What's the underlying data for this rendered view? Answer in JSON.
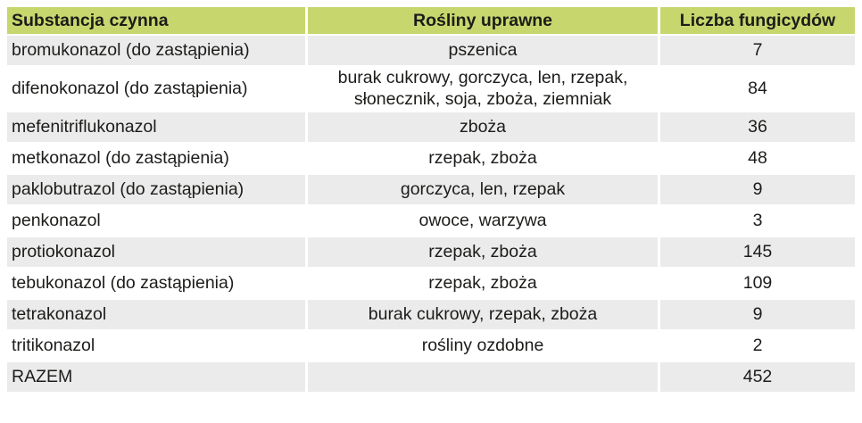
{
  "table": {
    "columns": [
      {
        "label": "Substancja czynna"
      },
      {
        "label": "Rośliny uprawne"
      },
      {
        "label": "Liczba fungicydów"
      }
    ],
    "rows": [
      {
        "substance": "bromukonazol (do zastąpienia)",
        "crops": "pszenica",
        "count": "7"
      },
      {
        "substance": "difenokonazol (do zastąpienia)",
        "crops": "burak cukrowy, gorczyca, len, rzepak, słonecznik, soja, zboża, ziemniak",
        "count": "84"
      },
      {
        "substance": "mefenitriflukonazol",
        "crops": "zboża",
        "count": "36"
      },
      {
        "substance": "metkonazol (do zastąpienia)",
        "crops": "rzepak, zboża",
        "count": "48"
      },
      {
        "substance": "paklobutrazol (do zastąpienia)",
        "crops": "gorczyca, len, rzepak",
        "count": "9"
      },
      {
        "substance": "penkonazol",
        "crops": "owoce, warzywa",
        "count": "3"
      },
      {
        "substance": "protiokonazol",
        "crops": "rzepak, zboża",
        "count": "145"
      },
      {
        "substance": "tebukonazol (do zastąpienia)",
        "crops": "rzepak, zboża",
        "count": "109"
      },
      {
        "substance": "tetrakonazol",
        "crops": "burak cukrowy, rzepak, zboża",
        "count": "9"
      },
      {
        "substance": "tritikonazol",
        "crops": "rośliny ozdobne",
        "count": "2"
      },
      {
        "substance": "RAZEM",
        "crops": "",
        "count": "452"
      }
    ],
    "colors": {
      "header_bg": "#c7d76d",
      "row_alt_bg": "#ebebeb",
      "row_bg": "#ffffff",
      "text": "#1c1c1a"
    }
  },
  "chart_data": {
    "type": "table",
    "title": "",
    "columns": [
      "Substancja czynna",
      "Rośliny uprawne",
      "Liczba fungicydów"
    ],
    "rows": [
      [
        "bromukonazol (do zastąpienia)",
        "pszenica",
        7
      ],
      [
        "difenokonazol (do zastąpienia)",
        "burak cukrowy, gorczyca, len, rzepak, słonecznik, soja, zboża, ziemniak",
        84
      ],
      [
        "mefenitriflukonazol",
        "zboża",
        36
      ],
      [
        "metkonazol (do zastąpienia)",
        "rzepak, zboża",
        48
      ],
      [
        "paklobutrazol (do zastąpienia)",
        "gorczyca, len, rzepak",
        9
      ],
      [
        "penkonazol",
        "owoce, warzywa",
        3
      ],
      [
        "protiokonazol",
        "rzepak, zboża",
        145
      ],
      [
        "tebukonazol (do zastąpienia)",
        "rzepak, zboża",
        109
      ],
      [
        "tetrakonazol",
        "burak cukrowy, rzepak, zboża",
        9
      ],
      [
        "tritikonazol",
        "rośliny ozdobne",
        2
      ],
      [
        "RAZEM",
        "",
        452
      ]
    ]
  }
}
